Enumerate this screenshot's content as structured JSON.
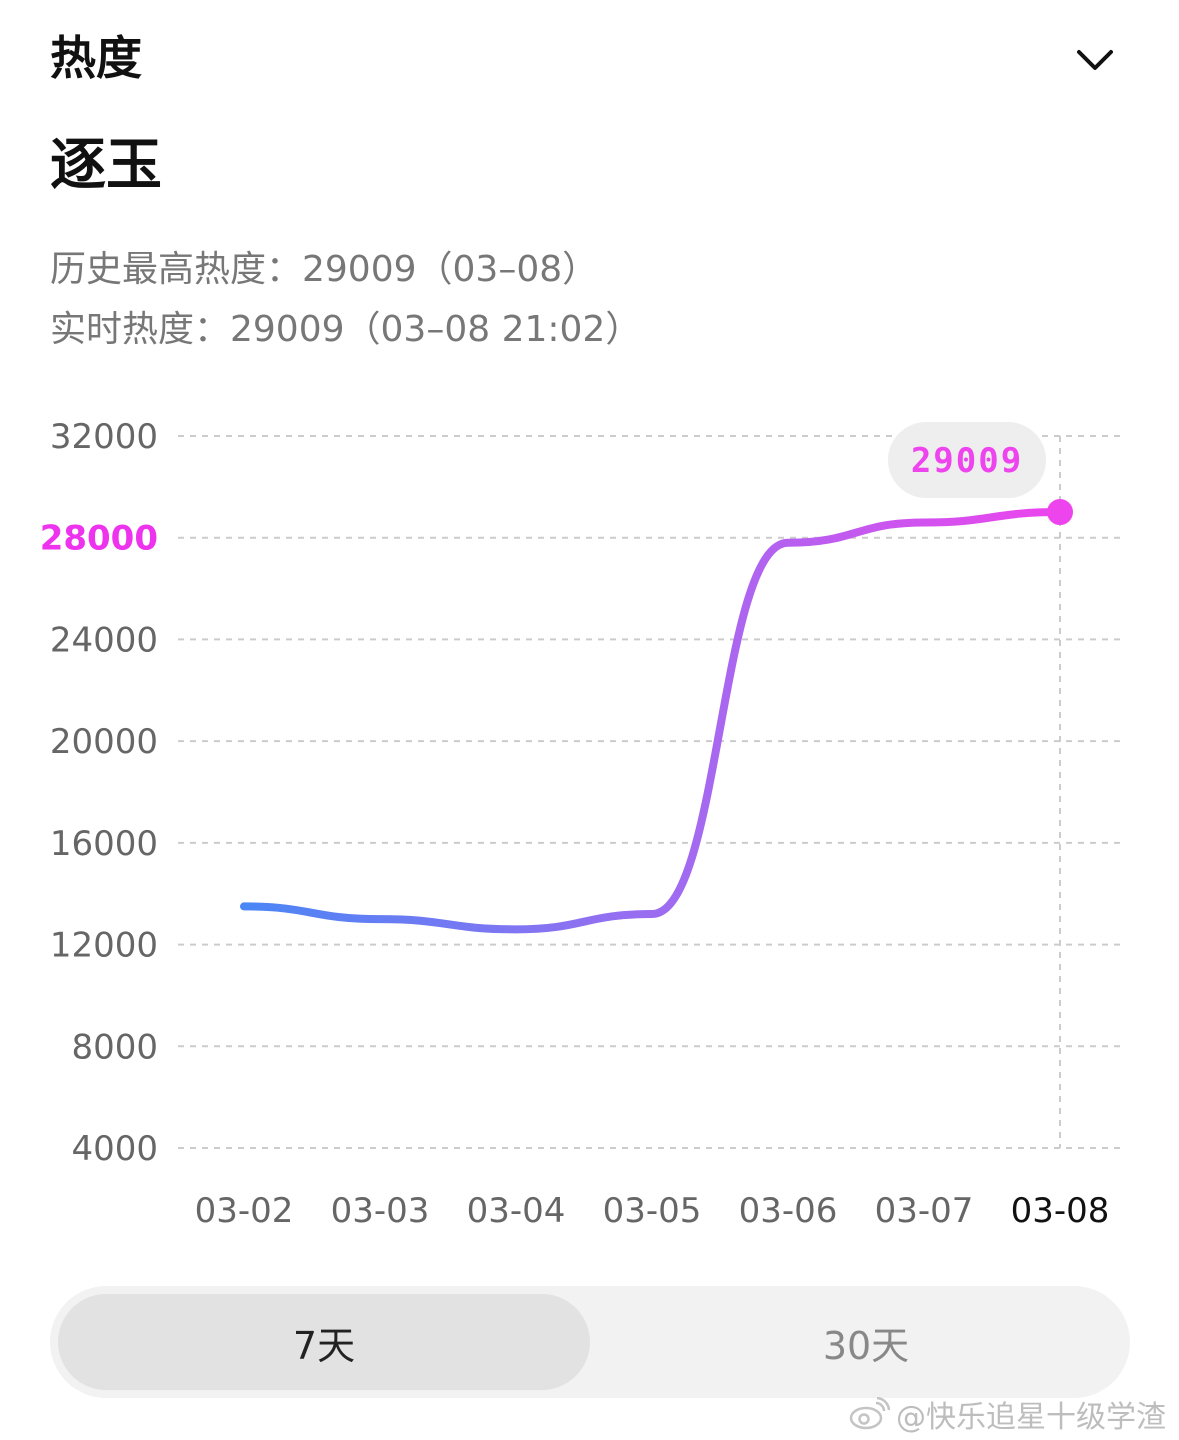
{
  "header": {
    "title": "热度"
  },
  "topic": {
    "title": "逐玉"
  },
  "stats": {
    "peak": "历史最高热度：29009（03–08）",
    "realtime": "实时热度：29009（03–08 21:02）"
  },
  "colors": {
    "line_start": "#4a86f5",
    "line_mid": "#a36af0",
    "line_end": "#ee44ee",
    "highlight_tick": "#ee33ee",
    "grid": "#cccccc",
    "axis_text": "#666666"
  },
  "chart_data": {
    "type": "line",
    "x": [
      "03-02",
      "03-03",
      "03-04",
      "03-05",
      "03-06",
      "03-07",
      "03-08"
    ],
    "series": [
      {
        "values": [
          13500,
          13000,
          12600,
          13200,
          27800,
          28600,
          29009
        ]
      }
    ],
    "y_ticks": [
      "32000",
      "28000",
      "24000",
      "20000",
      "16000",
      "12000",
      "8000",
      "4000"
    ],
    "highlighted_y_tick": "28000",
    "selected_x": "03-08",
    "tooltip_value": "29009",
    "ylim": [
      4000,
      32000
    ],
    "grid": "dashed horizontal",
    "title": "",
    "xlabel": "",
    "ylabel": ""
  },
  "range_tabs": {
    "active_label": "7天",
    "inactive_label": "30天"
  },
  "watermark": {
    "text": "@快乐追星十级学渣",
    "icon": "weibo-logo"
  }
}
